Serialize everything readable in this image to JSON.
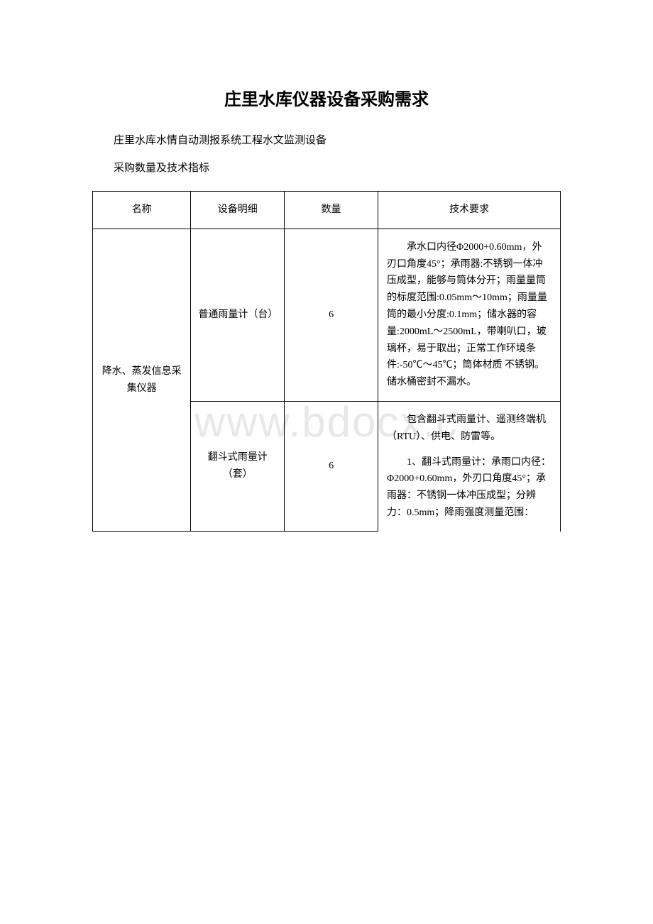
{
  "watermark": "www.bdocx.c",
  "title": "庄里水库仪器设备采购需求",
  "subtitle1": "庄里水库水情自动测报系统工程水文监测设备",
  "subtitle2": "采购数量及技术指标",
  "table": {
    "headers": {
      "name": "名称",
      "detail": "设备明细",
      "qty": "数量",
      "req": "技术要求"
    },
    "rows": [
      {
        "name": "降水、蒸发信息采集仪器",
        "detail": "普通雨量计（台）",
        "qty": "6",
        "req": "承水口内径Φ2000+0.60mm，外刃口角度45°；承雨器:不锈钢一体冲压成型，能够与筒体分开；雨量量筒的标度范围:0.05mm～10mm；雨量量筒的最小分度:0.1mm；储水器的容量:2000mL～2500mL，带喇叭口，玻璃杯，易于取出；正常工作环境条件:-50℃～45℃；筒体材质 不锈钢。储水桶密封不漏水。"
      },
      {
        "detail": "翻斗式雨量计（套）",
        "qty": "6",
        "req_p1": "包含翻斗式雨量计、遥测终端机（RTU）、供电、防雷等。",
        "req_p2": "1、翻斗式雨量计：承雨口内径：Φ2000+0.60mm，外刃口角度45°；承雨器：不锈钢一体冲压成型；分辨力：0.5mm；降雨强度测量范围："
      }
    ]
  },
  "styles": {
    "background_color": "#ffffff",
    "border_color": "#000000",
    "watermark_color": "#e8e8e8",
    "title_fontsize": 24,
    "body_fontsize": 15,
    "cell_fontsize": 14
  }
}
